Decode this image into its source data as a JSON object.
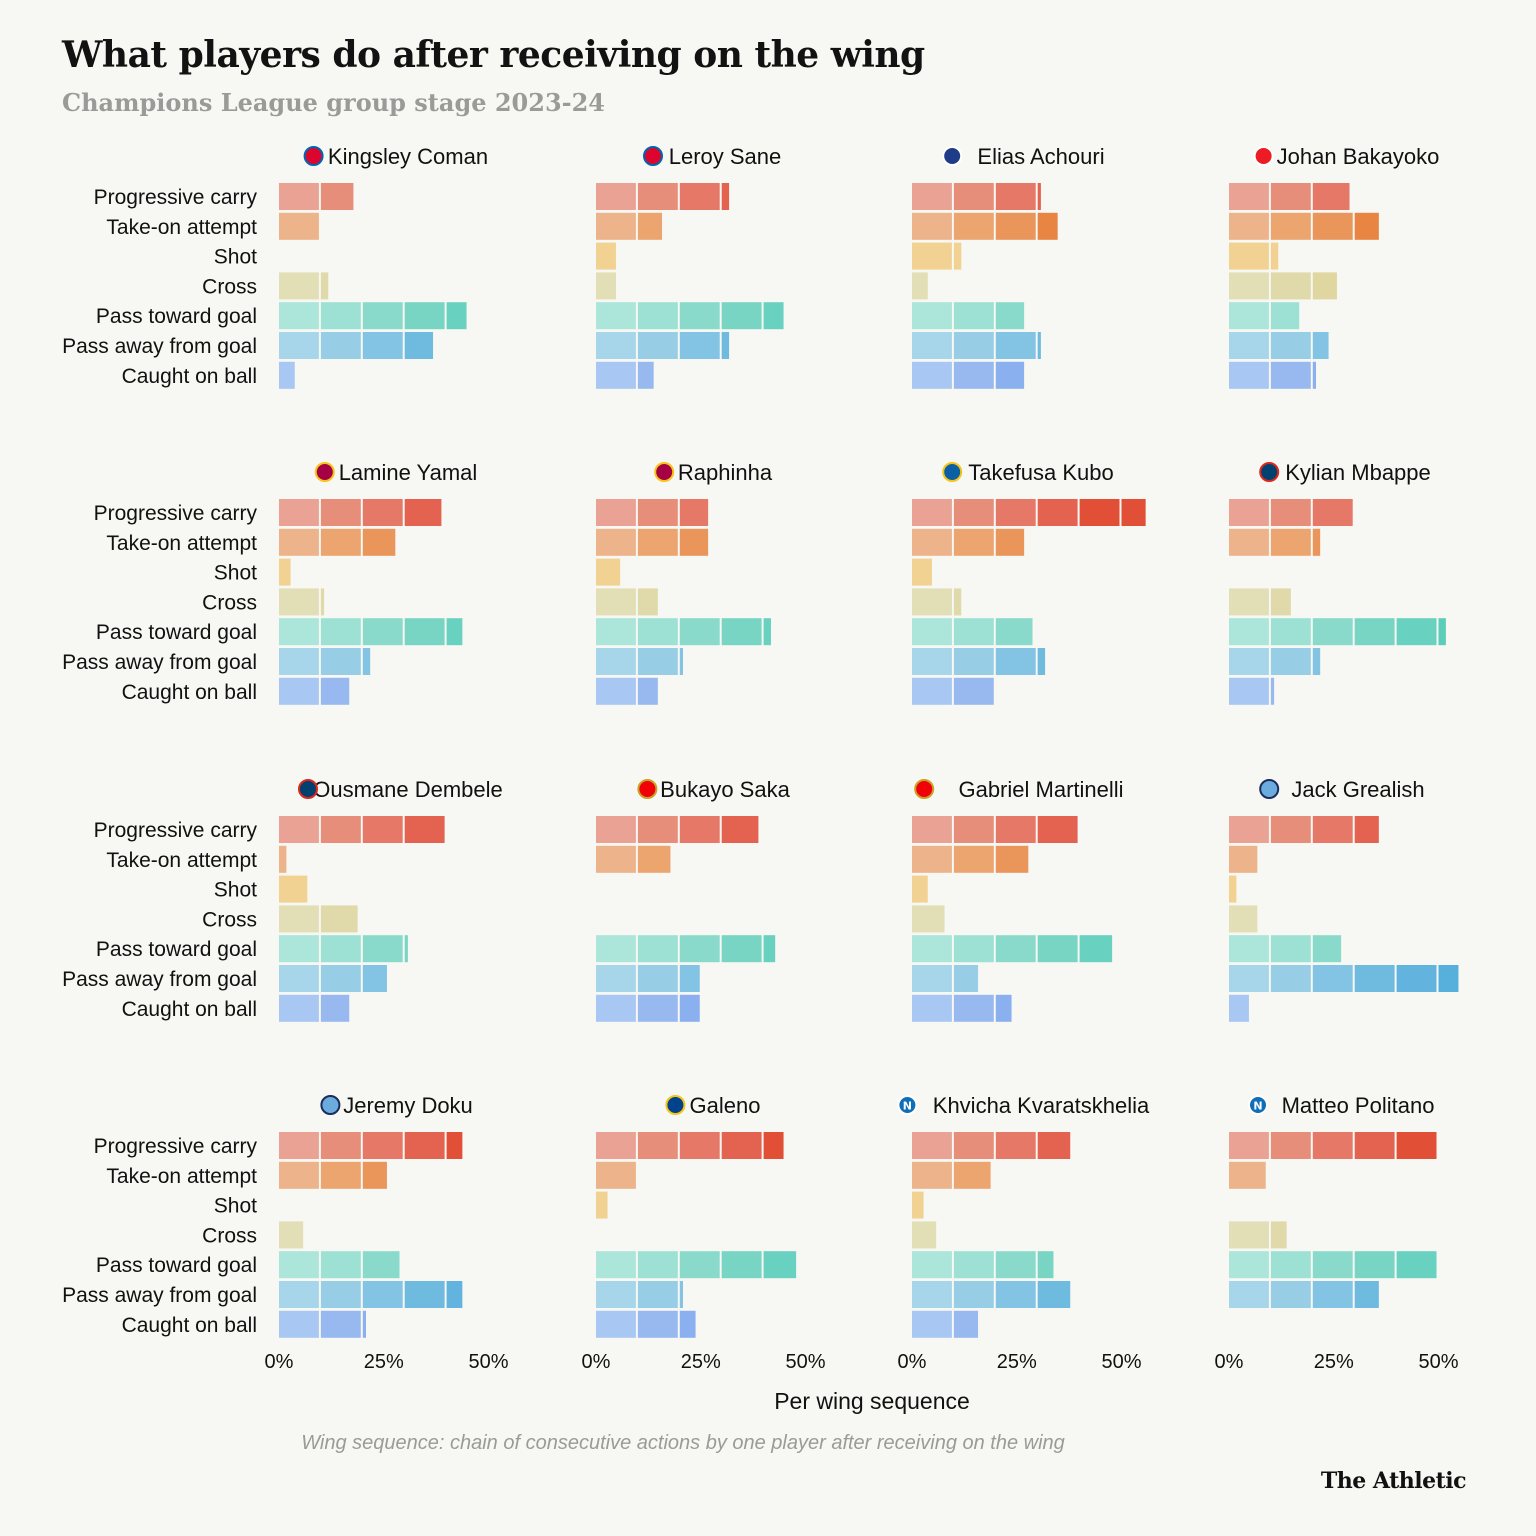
{
  "title": "What players do after receiving on the wing",
  "subtitle": "Champions League group stage 2023-24",
  "x_axis_label": "Per wing sequence",
  "footnote": "Wing sequence: chain of consecutive actions by one player after receiving on the wing",
  "brand": "The Athletic",
  "colors": {
    "Progressive carry": [
      "#e9a293",
      "#e78e7b",
      "#e57866",
      "#e36250",
      "#e14f37"
    ],
    "Take-on attempt": [
      "#edb38a",
      "#eca56f",
      "#ea955a",
      "#e88543",
      "#e67c2f"
    ],
    "Shot": [
      "#f2d293"
    ],
    "Cross": [
      "#e2deb6",
      "#e0d9a9",
      "#dfd6a0"
    ],
    "Pass toward goal": [
      "#ace5da",
      "#9ce1d4",
      "#89dacb",
      "#79d5c3",
      "#69d1c0",
      "#5ccdb9"
    ],
    "Pass away from goal": [
      "#a7d5e9",
      "#98cde6",
      "#83c3e3",
      "#6fbadf",
      "#62b4de",
      "#57afdc"
    ],
    "Caught on ball": [
      "#a9c7f3",
      "#98b9f0",
      "#8ab0f0",
      "#7ba6ee"
    ]
  },
  "chart_data": {
    "type": "bar",
    "orientation": "horizontal",
    "stacked_segments_each": 10,
    "xlabel": "Per wing sequence",
    "xlim": [
      0,
      55
    ],
    "x_ticks": [
      "0%",
      "25%",
      "50%"
    ],
    "categories": [
      "Progressive carry",
      "Take-on attempt",
      "Shot",
      "Cross",
      "Pass toward goal",
      "Pass away from goal",
      "Caught on ball"
    ],
    "panels": [
      {
        "player": "Kingsley Coman",
        "club": "Bayern Munich",
        "values": [
          18,
          10,
          0,
          12,
          45,
          37,
          4
        ]
      },
      {
        "player": "Leroy Sane",
        "club": "Bayern Munich",
        "values": [
          32,
          16,
          5,
          5,
          45,
          32,
          14
        ]
      },
      {
        "player": "Elias Achouri",
        "club": "Copenhagen",
        "values": [
          31,
          35,
          12,
          4,
          27,
          31,
          27
        ]
      },
      {
        "player": "Johan Bakayoko",
        "club": "PSV",
        "values": [
          29,
          36,
          12,
          26,
          17,
          24,
          21
        ]
      },
      {
        "player": "Lamine Yamal",
        "club": "Barcelona",
        "values": [
          39,
          28,
          3,
          11,
          44,
          22,
          17
        ]
      },
      {
        "player": "Raphinha",
        "club": "Barcelona",
        "values": [
          27,
          27,
          6,
          15,
          42,
          21,
          15
        ]
      },
      {
        "player": "Takefusa Kubo",
        "club": "Real Sociedad",
        "values": [
          56,
          27,
          5,
          12,
          29,
          32,
          20
        ]
      },
      {
        "player": "Kylian Mbappe",
        "club": "PSG",
        "values": [
          30,
          22,
          0,
          15,
          52,
          22,
          11
        ]
      },
      {
        "player": "Ousmane Dembele",
        "club": "PSG",
        "values": [
          40,
          2,
          7,
          19,
          31,
          26,
          17
        ]
      },
      {
        "player": "Bukayo Saka",
        "club": "Arsenal",
        "values": [
          39,
          18,
          0,
          0,
          43,
          25,
          25
        ]
      },
      {
        "player": "Gabriel Martinelli",
        "club": "Arsenal",
        "values": [
          40,
          28,
          4,
          8,
          48,
          16,
          24
        ]
      },
      {
        "player": "Jack Grealish",
        "club": "Manchester City",
        "values": [
          36,
          7,
          2,
          7,
          27,
          55,
          5
        ]
      },
      {
        "player": "Jeremy Doku",
        "club": "Manchester City",
        "values": [
          44,
          26,
          0,
          6,
          29,
          44,
          21
        ]
      },
      {
        "player": "Galeno",
        "club": "Porto",
        "values": [
          45,
          10,
          3,
          0,
          48,
          21,
          24
        ]
      },
      {
        "player": "Khvicha Kvaratskhelia",
        "club": "Napoli",
        "values": [
          38,
          19,
          3,
          6,
          34,
          38,
          16
        ]
      },
      {
        "player": "Matteo Politano",
        "club": "Napoli",
        "values": [
          50,
          9,
          0,
          14,
          50,
          36,
          0
        ]
      }
    ]
  }
}
